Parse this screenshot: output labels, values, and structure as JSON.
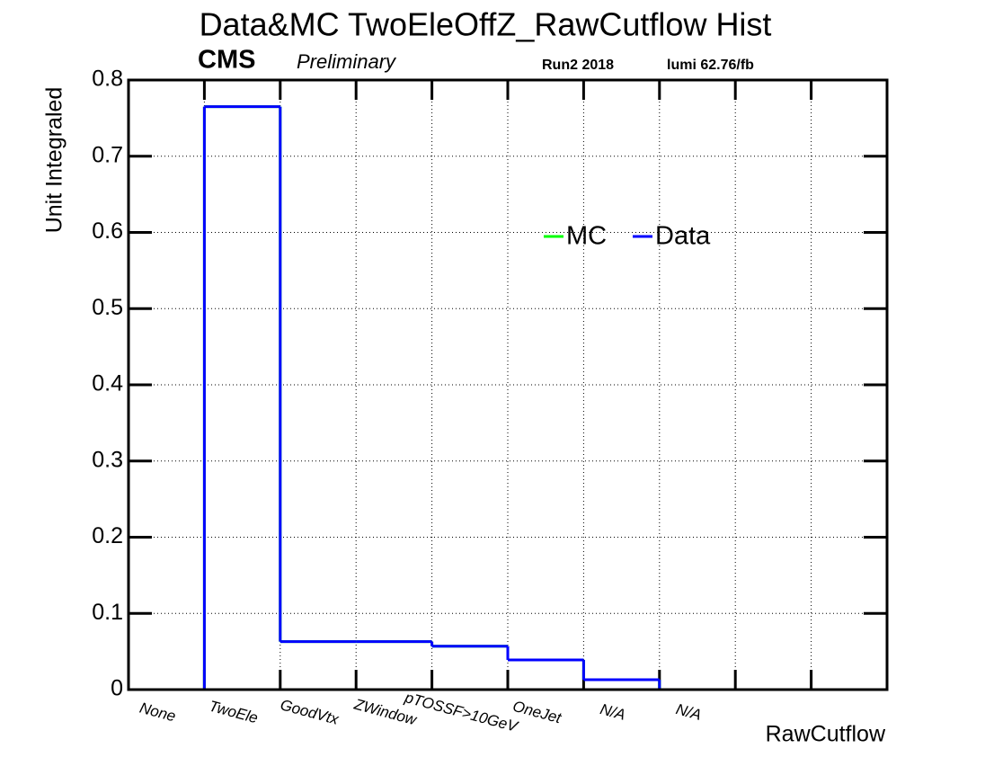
{
  "chart_data": {
    "type": "step",
    "title": "Data&MC TwoEleOffZ_RawCutflow Hist",
    "experiment": "CMS",
    "status": "Preliminary",
    "run": "Run2 2018",
    "lumi": "lumi 62.76/fb",
    "ylabel": "Unit Integraled",
    "xlabel": "RawCutflow",
    "categories": [
      "None",
      "TwoEle",
      "GoodVtx",
      "ZWindow",
      "pTOSSF>10GeV",
      "OneJet",
      "N/A",
      "N/A",
      null,
      null
    ],
    "series": [
      {
        "name": "MC",
        "color": "#00ff00",
        "values": [
          0,
          0.765,
          0.063,
          0.063,
          0.057,
          0.039,
          0.013,
          0,
          0,
          0
        ]
      },
      {
        "name": "Data",
        "color": "#0000ff",
        "values": [
          0,
          0.765,
          0.063,
          0.063,
          0.057,
          0.039,
          0.013,
          0,
          0,
          0
        ]
      }
    ],
    "ylim": [
      0,
      0.8
    ],
    "yticks": [
      0,
      0.1,
      0.2,
      0.3,
      0.4,
      0.5,
      0.6,
      0.7,
      0.8
    ],
    "grid": true
  }
}
